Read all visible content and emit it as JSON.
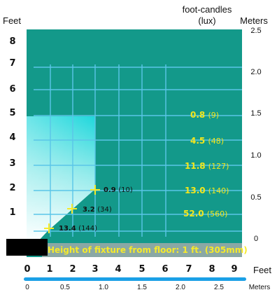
{
  "labels": {
    "feet_left": "Feet",
    "foot_candles": "foot-candles",
    "lux": "(lux)",
    "meters_right": "Meters",
    "feet_bottom": "Feet",
    "meters_bottom": "Meters",
    "caption": "Height of fixture from floor: 1 ft. (305mm)"
  },
  "y_feet_ticks": [
    "8",
    "7",
    "6",
    "5",
    "4",
    "3",
    "2",
    "1"
  ],
  "y_meter_ticks": [
    "2.5",
    "2.0",
    "1.5",
    "1.0",
    "0.5",
    "0"
  ],
  "x_feet_ticks": [
    "0",
    "1",
    "2",
    "3",
    "4",
    "5",
    "6",
    "7",
    "8",
    "9"
  ],
  "x_meter_ticks": [
    "0",
    "0.5",
    "1.0",
    "1.5",
    "2.0",
    "2.5"
  ],
  "fc_column": [
    {
      "value": "0.8",
      "lux": "(9)"
    },
    {
      "value": "4.5",
      "lux": "(48)"
    },
    {
      "value": "11.8",
      "lux": "(127)"
    },
    {
      "value": "13.0",
      "lux": "(140)"
    },
    {
      "value": "52.0",
      "lux": "(560)"
    }
  ],
  "points": [
    {
      "value": "0.9",
      "lux": "(10)"
    },
    {
      "value": "3.2",
      "lux": "(34)"
    },
    {
      "value": "13.4",
      "lux": "(144)"
    }
  ],
  "colors": {
    "panel": "#13998a",
    "grid": "#5bc5e8",
    "axis_bar": "#1ba0e6",
    "caption_text": "#f6ea2a",
    "marker": "#f6ea2a",
    "caption_band": "#8aa8a5"
  }
}
